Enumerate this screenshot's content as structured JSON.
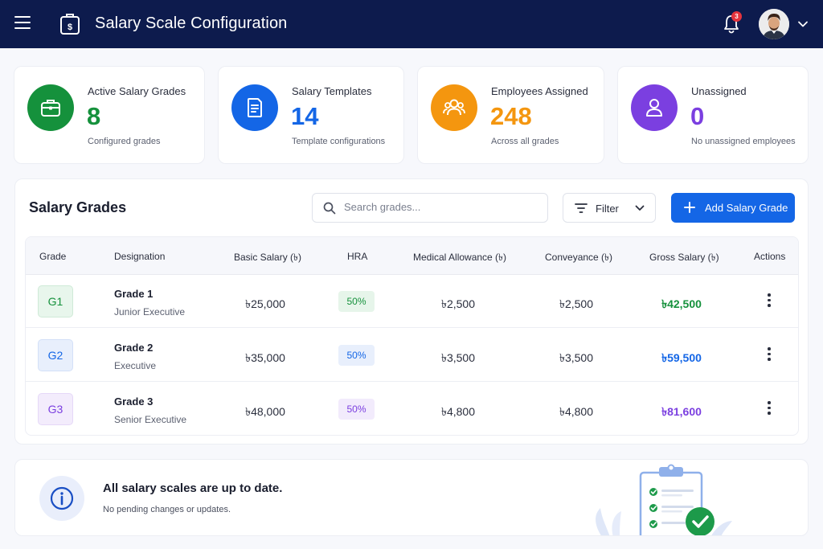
{
  "header": {
    "title": "Salary Scale Configuration",
    "notification_count": "3",
    "icons": [
      "menu-icon",
      "salary-document-icon",
      "bell-icon",
      "avatar",
      "chevron-down-icon"
    ]
  },
  "stats": [
    {
      "title": "Active Salary Grades",
      "value": "8",
      "subtitle": "Configured grades",
      "icon": "briefcase-icon",
      "color": "#15913c"
    },
    {
      "title": "Salary Templates",
      "value": "14",
      "subtitle": "Template configurations",
      "icon": "document-icon",
      "color": "#1466e6"
    },
    {
      "title": "Employees Assigned",
      "value": "248",
      "subtitle": "Across all grades",
      "icon": "users-icon",
      "color": "#f4960f"
    },
    {
      "title": "Unassigned",
      "value": "0",
      "subtitle": "No unassigned employees",
      "icon": "user-icon",
      "color": "#7b3fe0"
    }
  ],
  "grades_panel": {
    "title": "Salary Grades",
    "search_placeholder": "Search grades...",
    "filter_label": "Filter",
    "add_label": "Add Salary Grade",
    "columns": [
      "Grade",
      "Designation",
      "Basic Salary (৳)",
      "HRA",
      "Medical Allowance (৳)",
      "Conveyance (৳)",
      "Gross Salary (৳)",
      "Actions"
    ],
    "rows": [
      {
        "grade": "G1",
        "designation": "Grade 1",
        "level": "Junior Executive",
        "basic": "৳25,000",
        "hra": "50%",
        "medical": "৳2,500",
        "conveyance": "৳2,500",
        "gross": "৳42,500",
        "accent": "#15913c"
      },
      {
        "grade": "G2",
        "designation": "Grade 2",
        "level": "Executive",
        "basic": "৳35,000",
        "hra": "50%",
        "medical": "৳3,500",
        "conveyance": "৳3,500",
        "gross": "৳59,500",
        "accent": "#1466e6"
      },
      {
        "grade": "G3",
        "designation": "Grade 3",
        "level": "Senior Executive",
        "basic": "৳48,000",
        "hra": "50%",
        "medical": "৳4,800",
        "conveyance": "৳4,800",
        "gross": "৳81,600",
        "accent": "#7b3fe0"
      }
    ]
  },
  "banner": {
    "title": "All salary scales are up to date.",
    "subtitle": "No pending changes or updates.",
    "icon": "info-icon"
  }
}
